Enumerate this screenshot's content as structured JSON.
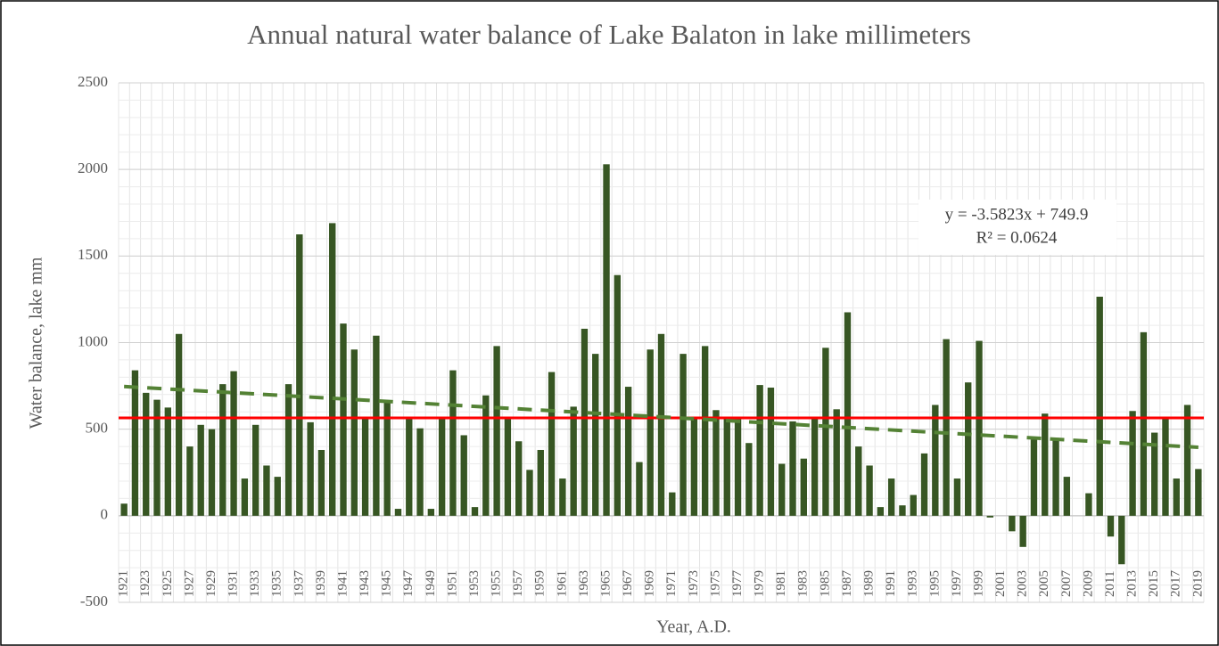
{
  "chart_data": {
    "type": "bar",
    "title": "Annual natural water balance of Lake Balaton in lake millimeters",
    "ylabel": "Water balance, lake mm",
    "xlabel": "Year,  A.D.",
    "categories": [
      "1921",
      null,
      "1923",
      null,
      "1925",
      null,
      "1927",
      null,
      "1929",
      null,
      "1931",
      null,
      "1933",
      null,
      "1935",
      null,
      "1937",
      null,
      "1939",
      null,
      "1941",
      null,
      "1943",
      null,
      "1945",
      null,
      "1947",
      null,
      "1949",
      null,
      "1951",
      null,
      "1953",
      null,
      "1955",
      null,
      "1957",
      null,
      "1959",
      null,
      "1961",
      null,
      "1963",
      null,
      "1965",
      null,
      "1967",
      null,
      "1969",
      null,
      "1971",
      null,
      "1973",
      null,
      "1975",
      null,
      "1977",
      null,
      "1979",
      null,
      "1981",
      null,
      "1983",
      null,
      "1985",
      null,
      "1987",
      null,
      "1989",
      null,
      "1991",
      null,
      "1993",
      null,
      "1995",
      null,
      "1997",
      null,
      "1999",
      null,
      "2001",
      null,
      "2003",
      null,
      "2005",
      null,
      "2007",
      null,
      "2009",
      null,
      "2011",
      null,
      "2013",
      null,
      "2015",
      null,
      "2017",
      null,
      "2019"
    ],
    "values": [
      70,
      840,
      710,
      670,
      625,
      1050,
      400,
      525,
      500,
      760,
      835,
      215,
      525,
      290,
      225,
      760,
      1625,
      540,
      380,
      1690,
      1110,
      960,
      560,
      1040,
      655,
      40,
      560,
      505,
      40,
      560,
      840,
      465,
      50,
      695,
      980,
      570,
      430,
      265,
      380,
      830,
      215,
      630,
      1080,
      935,
      2030,
      1390,
      745,
      310,
      960,
      1050,
      135,
      935,
      560,
      980,
      610,
      560,
      560,
      420,
      755,
      740,
      300,
      545,
      330,
      570,
      970,
      615,
      1175,
      400,
      290,
      50,
      215,
      60,
      120,
      360,
      640,
      1020,
      215,
      770,
      1010,
      -10,
      0,
      -90,
      -180,
      440,
      590,
      450,
      225,
      0,
      130,
      1265,
      -120,
      -280,
      605,
      1060,
      480,
      560,
      215,
      640,
      270
    ],
    "color": "#375623",
    "mean": 565,
    "mean_color": "#ff0000",
    "trendline": {
      "slope": -3.5823,
      "intercept": 749.9,
      "color": "#548235"
    },
    "annotation": [
      "y = -3.5823x + 749.9",
      "R² = 0.0624"
    ],
    "ylim": [
      -500,
      2500
    ],
    "yticks": [
      -500,
      0,
      500,
      1000,
      1500,
      2000,
      2500
    ],
    "grid": true
  }
}
